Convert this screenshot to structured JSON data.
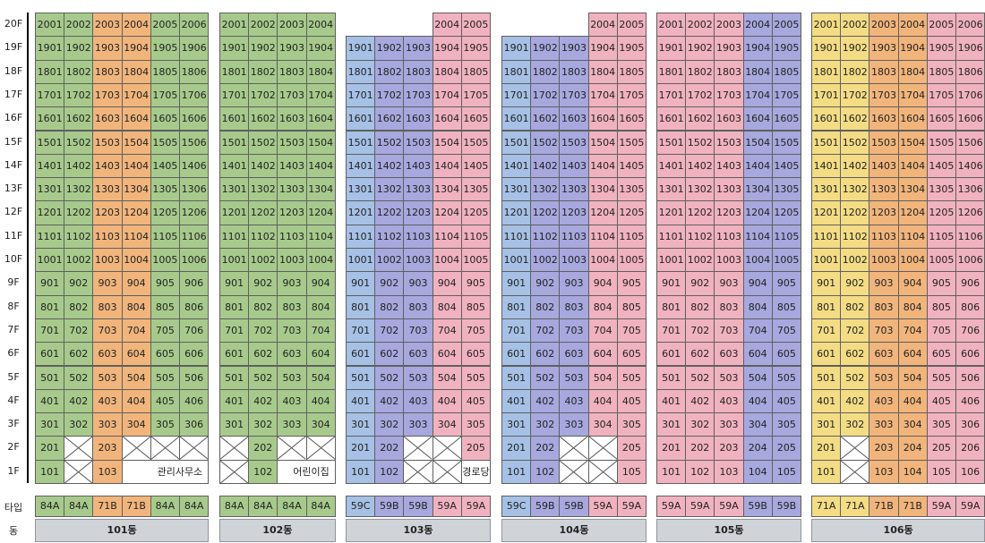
{
  "colors": {
    "84A": "#a7ca8c",
    "71A": "#f3dc84",
    "71B": "#f1b57c",
    "59A": "#f1b2bf",
    "59B": "#a7a8de",
    "59C": "#a6c1e5",
    "header_bg": "#d0d3d7"
  },
  "row_labels": {
    "type": "타입",
    "building": "동"
  },
  "floors": [
    "20F",
    "19F",
    "18F",
    "17F",
    "16F",
    "15F",
    "14F",
    "13F",
    "12F",
    "11F",
    "10F",
    "9F",
    "8F",
    "7F",
    "6F",
    "5F",
    "4F",
    "3F",
    "2F",
    "1F"
  ],
  "buildings": [
    {
      "name": "101동",
      "max_floor": 20,
      "types": [
        "84A",
        "84A",
        "71B",
        "71B",
        "84A",
        "84A"
      ],
      "floor2": [
        "201",
        null,
        "203",
        null,
        null,
        null
      ],
      "floor1": [
        "101",
        null,
        "103",
        "관리사무소"
      ],
      "floor1_merge_start": 3
    },
    {
      "name": "102동",
      "max_floor": 20,
      "types": [
        "84A",
        "84A",
        "84A",
        "84A"
      ],
      "floor2": [
        null,
        "202",
        null,
        null
      ],
      "floor1": [
        null,
        "102",
        "어린이집"
      ],
      "floor1_merge_start": 2
    },
    {
      "name": "103동",
      "max_floor": 19,
      "top_units": {
        "cols": [
          3,
          4
        ],
        "floor": 20
      },
      "types": [
        "59C",
        "59B",
        "59B",
        "59A",
        "59A"
      ],
      "floor2": [
        "201",
        "202",
        null,
        null,
        "205"
      ],
      "floor1": [
        "101",
        "102",
        null,
        null,
        "경로당"
      ]
    },
    {
      "name": "104동",
      "max_floor": 19,
      "top_units": {
        "cols": [
          3,
          4
        ],
        "floor": 20
      },
      "types": [
        "59C",
        "59B",
        "59B",
        "59A",
        "59A"
      ],
      "floor2": [
        "201",
        "202",
        null,
        null,
        "205"
      ],
      "floor1": [
        "101",
        "102",
        null,
        null,
        "105"
      ]
    },
    {
      "name": "105동",
      "max_floor": 20,
      "types": [
        "59A",
        "59A",
        "59A",
        "59B",
        "59B"
      ],
      "floor2": [
        "201",
        "202",
        "203",
        "204",
        "205"
      ],
      "floor1": [
        "101",
        "102",
        "103",
        "104",
        "105"
      ]
    },
    {
      "name": "106동",
      "max_floor": 20,
      "types": [
        "71A",
        "71A",
        "71B",
        "71B",
        "59A",
        "59A"
      ],
      "floor2": [
        "201",
        null,
        "203",
        "204",
        "205",
        "206"
      ],
      "floor1": [
        "101",
        null,
        "103",
        "104",
        "105",
        "106"
      ]
    }
  ]
}
